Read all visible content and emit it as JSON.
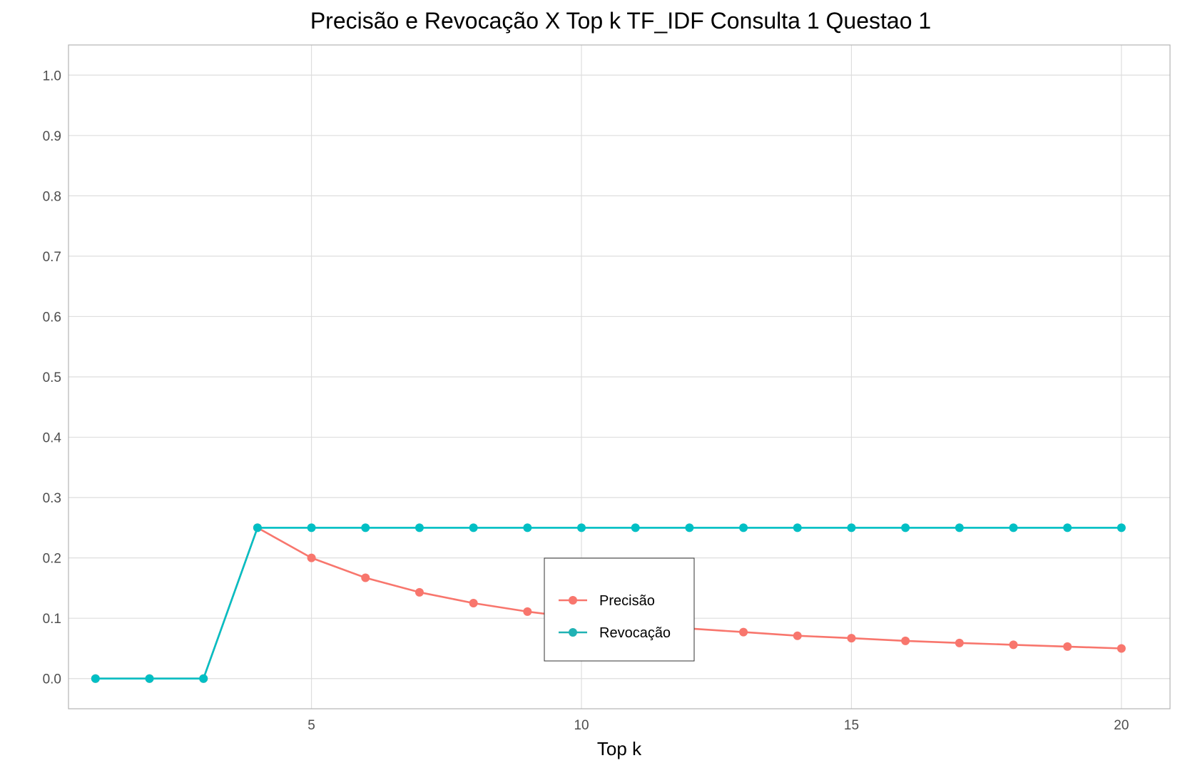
{
  "chart_data": {
    "type": "line",
    "title": "Precisão e Revocação X Top k TF_IDF Consulta 1 Questao 1",
    "xlabel": "Top k",
    "ylabel": "",
    "xlim": [
      0.5,
      20.9
    ],
    "ylim": [
      -0.05,
      1.05
    ],
    "x_ticks": [
      5,
      10,
      15,
      20
    ],
    "x_tick_labels": [
      "5",
      "10",
      "15",
      "20"
    ],
    "y_ticks": [
      0.0,
      0.1,
      0.2,
      0.3,
      0.4,
      0.5,
      0.6,
      0.7,
      0.8,
      0.9,
      1.0
    ],
    "y_tick_labels": [
      "0.0",
      "0.1",
      "0.2",
      "0.3",
      "0.4",
      "0.5",
      "0.6",
      "0.7",
      "0.8",
      "0.9",
      "1.0"
    ],
    "grid": true,
    "legend_position": "center",
    "x": [
      1,
      2,
      3,
      4,
      5,
      6,
      7,
      8,
      9,
      10,
      11,
      12,
      13,
      14,
      15,
      16,
      17,
      18,
      19,
      20
    ],
    "series": [
      {
        "name": "Precisão",
        "color": "#F8766D",
        "values": [
          0,
          0,
          0,
          0.25,
          0.2,
          0.167,
          0.143,
          0.125,
          0.111,
          0.1,
          0.091,
          0.083,
          0.077,
          0.071,
          0.067,
          0.0625,
          0.059,
          0.056,
          0.053,
          0.05
        ]
      },
      {
        "name": "Revocação",
        "color": "#00BFC4",
        "values": [
          0,
          0,
          0,
          0.25,
          0.25,
          0.25,
          0.25,
          0.25,
          0.25,
          0.25,
          0.25,
          0.25,
          0.25,
          0.25,
          0.25,
          0.25,
          0.25,
          0.25,
          0.25,
          0.25
        ]
      }
    ],
    "legend_colors": {
      "precisao": "#F8766D",
      "revocacao": "#20B2B4"
    }
  }
}
